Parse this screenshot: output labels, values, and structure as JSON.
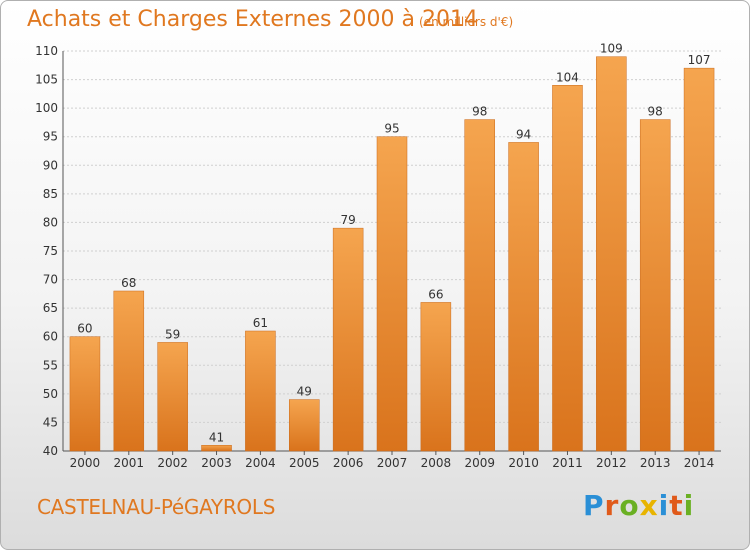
{
  "title": "Achats et Charges Externes 2000 à 2014",
  "unit_note": "(en milliers d'€)",
  "commune_name": "CASTELNAU-PéGAYROLS",
  "logo": {
    "text": "Proxiti",
    "letters": [
      "P",
      "r",
      "o",
      "x",
      "i",
      "t",
      "i"
    ],
    "letter_colors": [
      "#2a8fd6",
      "#e05a1a",
      "#6ab023",
      "#e8b400",
      "#2a8fd6",
      "#e05a1a",
      "#6ab023"
    ]
  },
  "colors": {
    "accent": "#e07820",
    "bar_light": "#f5a54f",
    "bar_dark": "#d9731c"
  },
  "chart_data": {
    "type": "bar",
    "title": "Achats et Charges Externes 2000 à 2014",
    "subtitle": "(en milliers d'€)",
    "categories": [
      "2000",
      "2001",
      "2002",
      "2003",
      "2004",
      "2005",
      "2006",
      "2007",
      "2008",
      "2009",
      "2010",
      "2011",
      "2012",
      "2013",
      "2014"
    ],
    "values": [
      60,
      68,
      59,
      41,
      61,
      49,
      79,
      95,
      66,
      98,
      94,
      104,
      109,
      98,
      107
    ],
    "ylim": [
      40,
      110
    ],
    "yticks": [
      40,
      45,
      50,
      55,
      60,
      65,
      70,
      75,
      80,
      85,
      90,
      95,
      100,
      105,
      110
    ],
    "grid": true,
    "data_labels": true
  }
}
